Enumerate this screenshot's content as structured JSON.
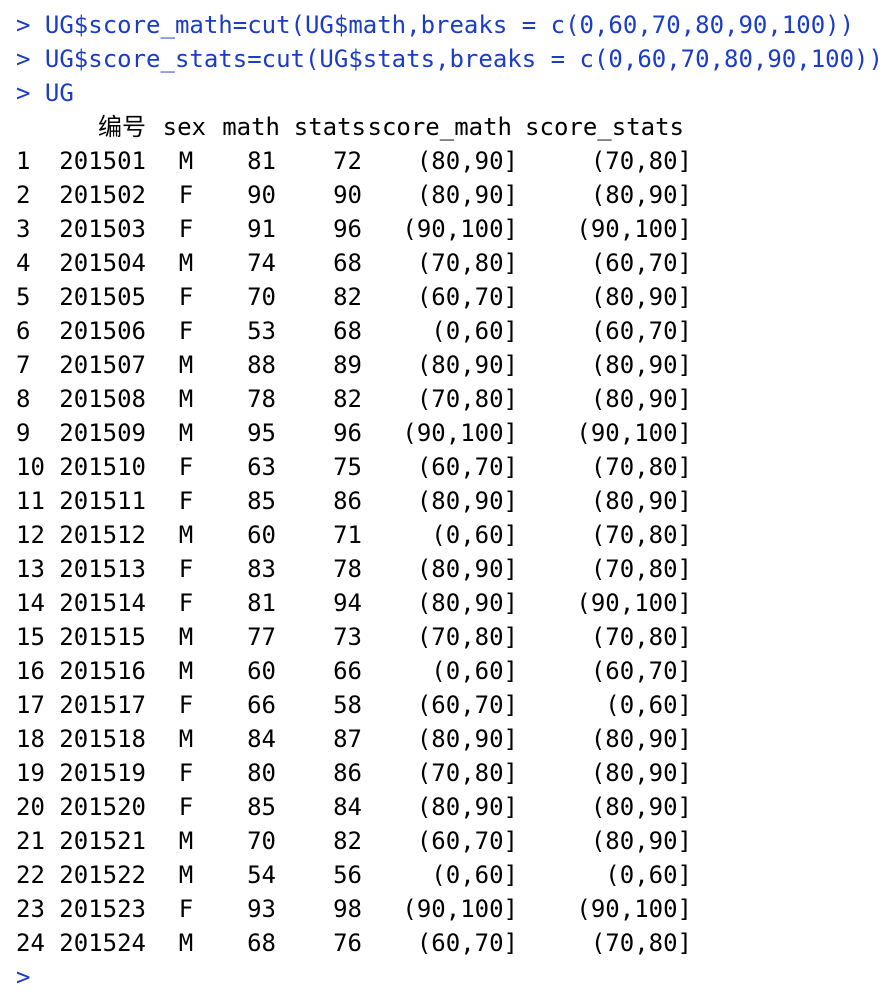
{
  "commands": [
    "> UG$score_math=cut(UG$math,breaks = c(0,60,70,80,90,100))",
    "> UG$score_stats=cut(UG$stats,breaks = c(0,60,70,80,90,100))",
    "> UG"
  ],
  "table": {
    "headers": [
      "编号",
      "sex",
      "math",
      "stats",
      "score_math",
      "score_stats"
    ],
    "rows": [
      {
        "idx": "1",
        "id": "201501",
        "sex": "M",
        "math": "81",
        "stats": "72",
        "score_math": "(80,90]",
        "score_stats": "(70,80]"
      },
      {
        "idx": "2",
        "id": "201502",
        "sex": "F",
        "math": "90",
        "stats": "90",
        "score_math": "(80,90]",
        "score_stats": "(80,90]"
      },
      {
        "idx": "3",
        "id": "201503",
        "sex": "F",
        "math": "91",
        "stats": "96",
        "score_math": "(90,100]",
        "score_stats": "(90,100]"
      },
      {
        "idx": "4",
        "id": "201504",
        "sex": "M",
        "math": "74",
        "stats": "68",
        "score_math": "(70,80]",
        "score_stats": "(60,70]"
      },
      {
        "idx": "5",
        "id": "201505",
        "sex": "F",
        "math": "70",
        "stats": "82",
        "score_math": "(60,70]",
        "score_stats": "(80,90]"
      },
      {
        "idx": "6",
        "id": "201506",
        "sex": "F",
        "math": "53",
        "stats": "68",
        "score_math": "(0,60]",
        "score_stats": "(60,70]"
      },
      {
        "idx": "7",
        "id": "201507",
        "sex": "M",
        "math": "88",
        "stats": "89",
        "score_math": "(80,90]",
        "score_stats": "(80,90]"
      },
      {
        "idx": "8",
        "id": "201508",
        "sex": "M",
        "math": "78",
        "stats": "82",
        "score_math": "(70,80]",
        "score_stats": "(80,90]"
      },
      {
        "idx": "9",
        "id": "201509",
        "sex": "M",
        "math": "95",
        "stats": "96",
        "score_math": "(90,100]",
        "score_stats": "(90,100]"
      },
      {
        "idx": "10",
        "id": "201510",
        "sex": "F",
        "math": "63",
        "stats": "75",
        "score_math": "(60,70]",
        "score_stats": "(70,80]"
      },
      {
        "idx": "11",
        "id": "201511",
        "sex": "F",
        "math": "85",
        "stats": "86",
        "score_math": "(80,90]",
        "score_stats": "(80,90]"
      },
      {
        "idx": "12",
        "id": "201512",
        "sex": "M",
        "math": "60",
        "stats": "71",
        "score_math": "(0,60]",
        "score_stats": "(70,80]"
      },
      {
        "idx": "13",
        "id": "201513",
        "sex": "F",
        "math": "83",
        "stats": "78",
        "score_math": "(80,90]",
        "score_stats": "(70,80]"
      },
      {
        "idx": "14",
        "id": "201514",
        "sex": "F",
        "math": "81",
        "stats": "94",
        "score_math": "(80,90]",
        "score_stats": "(90,100]"
      },
      {
        "idx": "15",
        "id": "201515",
        "sex": "M",
        "math": "77",
        "stats": "73",
        "score_math": "(70,80]",
        "score_stats": "(70,80]"
      },
      {
        "idx": "16",
        "id": "201516",
        "sex": "M",
        "math": "60",
        "stats": "66",
        "score_math": "(0,60]",
        "score_stats": "(60,70]"
      },
      {
        "idx": "17",
        "id": "201517",
        "sex": "F",
        "math": "66",
        "stats": "58",
        "score_math": "(60,70]",
        "score_stats": "(0,60]"
      },
      {
        "idx": "18",
        "id": "201518",
        "sex": "M",
        "math": "84",
        "stats": "87",
        "score_math": "(80,90]",
        "score_stats": "(80,90]"
      },
      {
        "idx": "19",
        "id": "201519",
        "sex": "F",
        "math": "80",
        "stats": "86",
        "score_math": "(70,80]",
        "score_stats": "(80,90]"
      },
      {
        "idx": "20",
        "id": "201520",
        "sex": "F",
        "math": "85",
        "stats": "84",
        "score_math": "(80,90]",
        "score_stats": "(80,90]"
      },
      {
        "idx": "21",
        "id": "201521",
        "sex": "M",
        "math": "70",
        "stats": "82",
        "score_math": "(60,70]",
        "score_stats": "(80,90]"
      },
      {
        "idx": "22",
        "id": "201522",
        "sex": "M",
        "math": "54",
        "stats": "56",
        "score_math": "(0,60]",
        "score_stats": "(0,60]"
      },
      {
        "idx": "23",
        "id": "201523",
        "sex": "F",
        "math": "93",
        "stats": "98",
        "score_math": "(90,100]",
        "score_stats": "(90,100]"
      },
      {
        "idx": "24",
        "id": "201524",
        "sex": "M",
        "math": "68",
        "stats": "76",
        "score_math": "(60,70]",
        "score_stats": "(70,80]"
      }
    ]
  },
  "final_prompt": ">",
  "colors": {
    "command": "#1a3cc8",
    "output": "#000000",
    "background": "#ffffff"
  }
}
